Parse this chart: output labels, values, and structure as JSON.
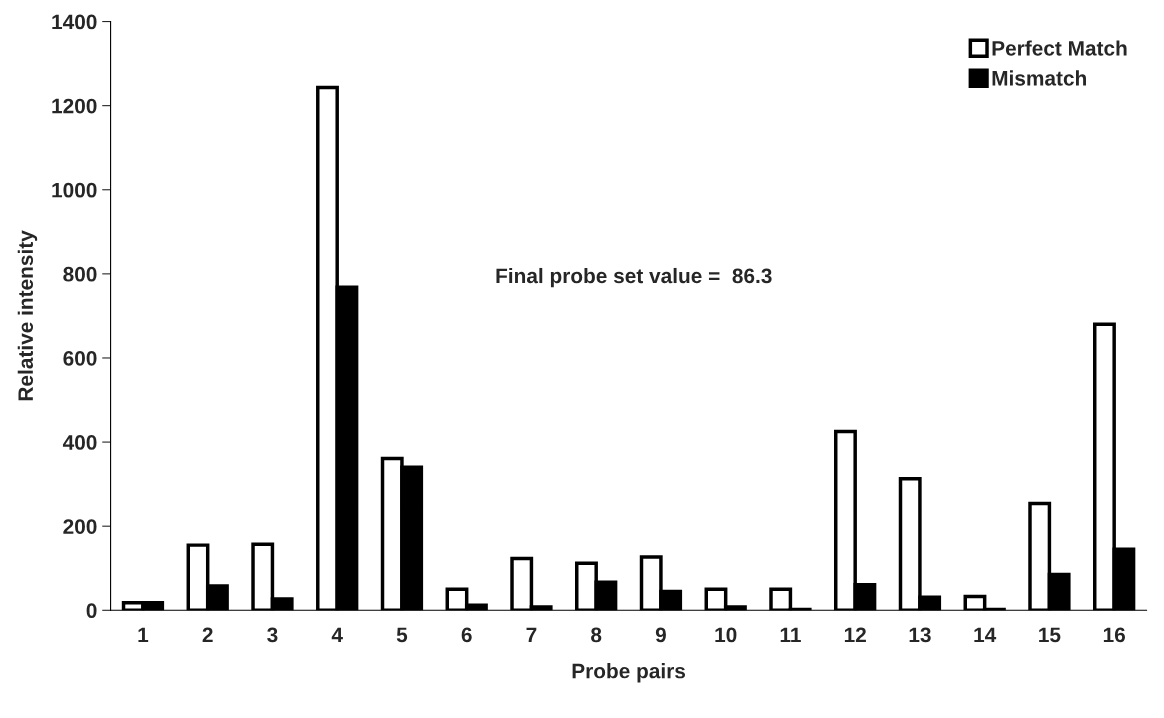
{
  "chart_data": {
    "type": "bar",
    "xlabel": "Probe pairs",
    "ylabel": "Relative intensity",
    "categories": [
      "1",
      "2",
      "3",
      "4",
      "5",
      "6",
      "7",
      "8",
      "9",
      "10",
      "11",
      "12",
      "13",
      "14",
      "15",
      "16"
    ],
    "series": [
      {
        "name": "Perfect Match",
        "color": "#ffffff",
        "values": [
          18,
          155,
          157,
          1243,
          361,
          50,
          123,
          112,
          127,
          50,
          50,
          425,
          313,
          33,
          254,
          680
        ]
      },
      {
        "name": "Mismatch",
        "color": "#000000",
        "values": [
          18,
          58,
          27,
          768,
          340,
          12,
          8,
          67,
          45,
          8,
          2,
          61,
          31,
          2,
          85,
          145
        ]
      }
    ],
    "ylim": [
      0,
      1400
    ],
    "yticks": [
      0,
      200,
      400,
      600,
      800,
      1000,
      1200,
      1400
    ],
    "annotations": [
      "Final probe set value =  86.3"
    ],
    "legend": "top right",
    "grid": false
  }
}
